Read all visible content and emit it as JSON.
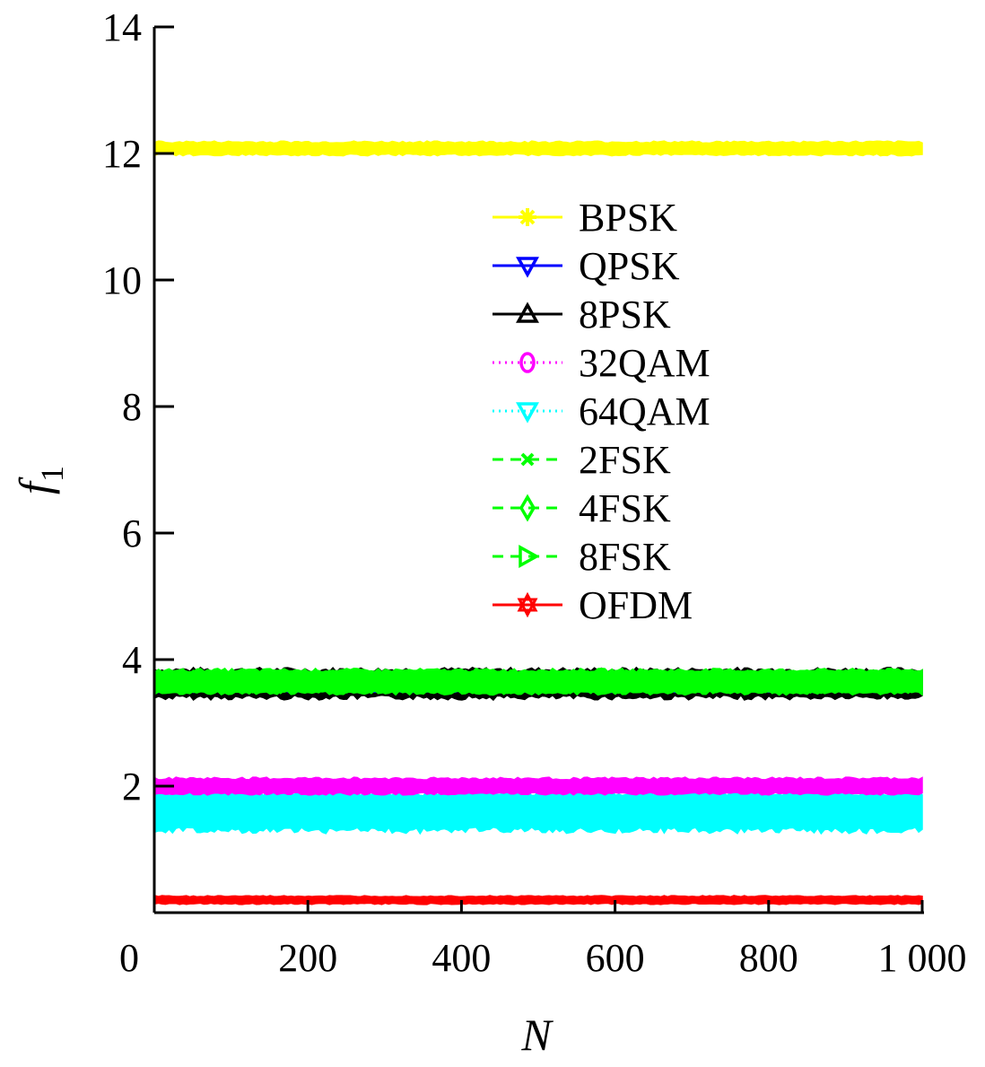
{
  "chart_data": {
    "type": "line",
    "title": "",
    "xlabel": "N",
    "ylabel": "f",
    "ylabel_sub": "1",
    "xlim": [
      0,
      1000
    ],
    "ylim": [
      0,
      14
    ],
    "x_ticks": [
      0,
      200,
      400,
      600,
      800,
      1000
    ],
    "x_tick_labels": [
      "0",
      "200",
      "400",
      "600",
      "800",
      "1 000"
    ],
    "y_ticks": [
      2,
      4,
      6,
      8,
      10,
      12,
      14
    ],
    "y_tick_labels": [
      "2",
      "4",
      "6",
      "8",
      "10",
      "12",
      "14"
    ],
    "grid": false,
    "legend_position": "center-right",
    "x_range": [
      1,
      1000
    ],
    "series": [
      {
        "name": "BPSK",
        "color": "#ffff00",
        "marker": "asterisk",
        "line": "solid",
        "mean": 12.08,
        "spread": 0.1
      },
      {
        "name": "QPSK",
        "color": "#0000ff",
        "marker": "triangle-down",
        "line": "solid",
        "mean": 3.62,
        "spread": 0.12
      },
      {
        "name": "8PSK",
        "color": "#000000",
        "marker": "triangle-up",
        "line": "solid",
        "mean": 3.62,
        "spread": 0.22
      },
      {
        "name": "32QAM",
        "color": "#ff00ff",
        "marker": "circle",
        "line": "dotted",
        "mean": 2.0,
        "spread": 0.12
      },
      {
        "name": "64QAM",
        "color": "#00ffff",
        "marker": "triangle-down",
        "line": "dotted",
        "mean": 1.6,
        "spread": 0.3
      },
      {
        "name": "2FSK",
        "color": "#00ff00",
        "marker": "x",
        "line": "dashed",
        "mean": 3.65,
        "spread": 0.18
      },
      {
        "name": "4FSK",
        "color": "#00ff00",
        "marker": "diamond",
        "line": "dashed",
        "mean": 3.65,
        "spread": 0.16
      },
      {
        "name": "8FSK",
        "color": "#00ff00",
        "marker": "triangle-right",
        "line": "dashed",
        "mean": 3.65,
        "spread": 0.14
      },
      {
        "name": "OFDM",
        "color": "#ff0000",
        "marker": "hexagram",
        "line": "solid",
        "mean": 0.2,
        "spread": 0.06
      }
    ]
  }
}
